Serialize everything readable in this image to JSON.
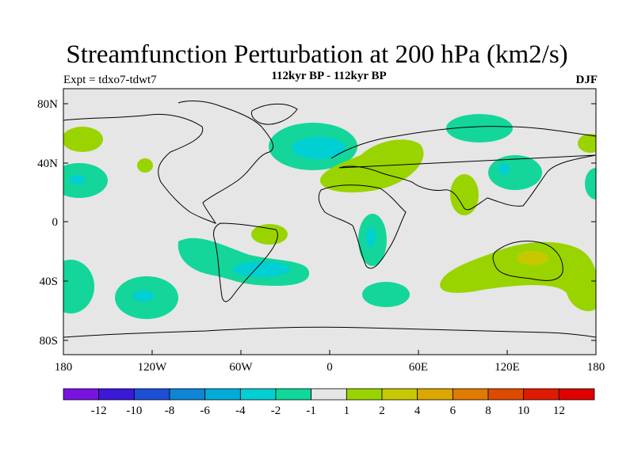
{
  "header": {
    "title": "Streamfunction Perturbation at 200 hPa (km2/s)",
    "subtitle": "112kyr BP - 112kyr BP",
    "experiment": "Expt = tdxo7-tdwt7",
    "season": "DJF"
  },
  "axes": {
    "y_ticks": [
      "80N",
      "40N",
      "0",
      "40S",
      "80S"
    ],
    "x_ticks": [
      "180",
      "120W",
      "60W",
      "0",
      "60E",
      "120E",
      "180"
    ]
  },
  "colorbar": {
    "labels": [
      "-12",
      "-10",
      "-8",
      "-6",
      "-4",
      "-2",
      "-1",
      "1",
      "2",
      "4",
      "6",
      "8",
      "10",
      "12"
    ],
    "colors": [
      "#7a12e0",
      "#3c18d8",
      "#1c4ed8",
      "#0e86d6",
      "#00acd8",
      "#00cfd4",
      "#0ed89a",
      "#e6e6e6",
      "#9ad400",
      "#c8c800",
      "#dca800",
      "#e07a00",
      "#e04a00",
      "#e01a00",
      "#e00000"
    ]
  },
  "colors": {
    "neutral": "#e6e6e6",
    "neg1": "#14d69a",
    "neg2": "#00cfd4",
    "pos1": "#9ad400",
    "pos2": "#c8c800"
  }
}
